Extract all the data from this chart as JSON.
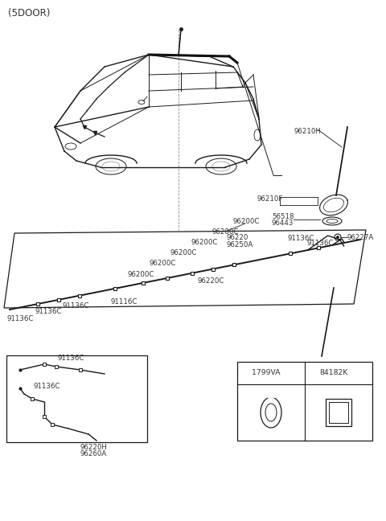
{
  "title": "(5DOOR)",
  "bg_color": "#ffffff",
  "line_color": "#1a1a1a",
  "text_color": "#333333",
  "parts": {
    "antenna_rod": "96210H",
    "antenna_base": "96210F",
    "gasket1": "56518",
    "gasket2": "96443",
    "antenna_feeder": "96220",
    "feeder_assy": "96250A",
    "nut": "96227A",
    "cable_main": "96200C",
    "cable_branch": "91136C",
    "cable_clamp": "91116C",
    "cable_feeder": "96220C",
    "cable_lower1": "96220H",
    "cable_lower2": "96260A"
  },
  "legend_items": [
    {
      "code": "1799VA",
      "shape": "oval"
    },
    {
      "code": "84182K",
      "shape": "square"
    }
  ]
}
